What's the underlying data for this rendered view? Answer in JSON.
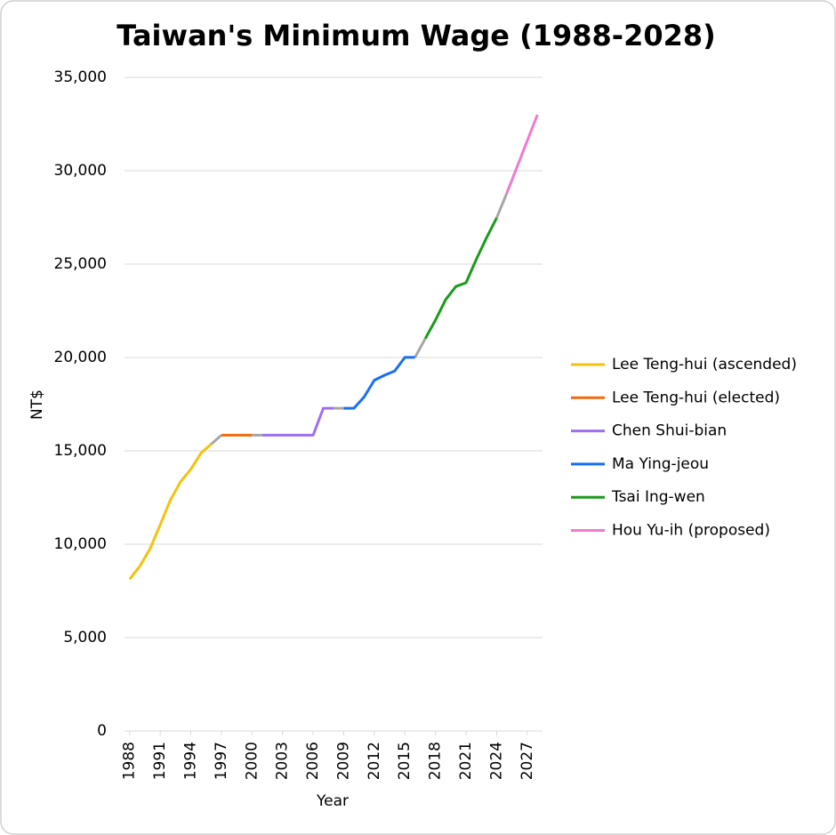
{
  "chart_data": {
    "type": "line",
    "title": "Taiwan's Minimum Wage (1988-2028)",
    "x_label": "Year",
    "y_label": "NT$",
    "xlim": [
      1987.5,
      2028.5
    ],
    "xticks": [
      1988,
      1991,
      1994,
      1997,
      2000,
      2003,
      2006,
      2009,
      2012,
      2015,
      2018,
      2021,
      2024,
      2027
    ],
    "ylim": [
      0,
      35000
    ],
    "yticks": [
      0,
      {
        "value": 5000,
        "label": "5,000"
      },
      {
        "value": 10000,
        "label": "10,000"
      },
      {
        "value": 15000,
        "label": "15,000"
      },
      {
        "value": 20000,
        "label": "20,000"
      },
      {
        "value": 25000,
        "label": "25,000"
      },
      {
        "value": 30000,
        "label": "30,000"
      },
      {
        "value": 35000,
        "label": "35,000"
      }
    ],
    "grid": true,
    "legend": "right",
    "connector_color": "#a6a6a6",
    "series": [
      {
        "name": "Lee Teng-hui (ascended)",
        "color": "#f4c20d",
        "x": [
          1988,
          1989,
          1990,
          1991,
          1992,
          1993,
          1994,
          1995,
          1996
        ],
        "values": [
          8130,
          8820,
          9750,
          11040,
          12365,
          13350,
          14010,
          14880,
          15360
        ]
      },
      {
        "name": "Lee Teng-hui (elected)",
        "color": "#f26b0f",
        "x": [
          1997,
          1998,
          1999,
          2000
        ],
        "values": [
          15840,
          15840,
          15840,
          15840
        ]
      },
      {
        "name": "Chen Shui-bian",
        "color": "#9d6ff0",
        "x": [
          2001,
          2002,
          2003,
          2004,
          2005,
          2006,
          2007,
          2008
        ],
        "values": [
          15840,
          15840,
          15840,
          15840,
          15840,
          15840,
          17280,
          17280
        ]
      },
      {
        "name": "Ma Ying-jeou",
        "color": "#1a6ef0",
        "x": [
          2009,
          2010,
          2011,
          2012,
          2013,
          2014,
          2015,
          2016
        ],
        "values": [
          17280,
          17280,
          17880,
          18780,
          19047,
          19273,
          20008,
          20008
        ]
      },
      {
        "name": "Tsai Ing-wen",
        "color": "#1a9a1a",
        "x": [
          2017,
          2018,
          2019,
          2020,
          2021,
          2022,
          2023,
          2024
        ],
        "values": [
          21009,
          22000,
          23100,
          23800,
          24000,
          25250,
          26400,
          27470
        ]
      },
      {
        "name": "Hou Yu-ih (proposed)",
        "color": "#f07ad0",
        "x": [
          2025,
          2026,
          2027,
          2028
        ],
        "values": [
          28800,
          30200,
          31600,
          33000
        ]
      }
    ]
  }
}
